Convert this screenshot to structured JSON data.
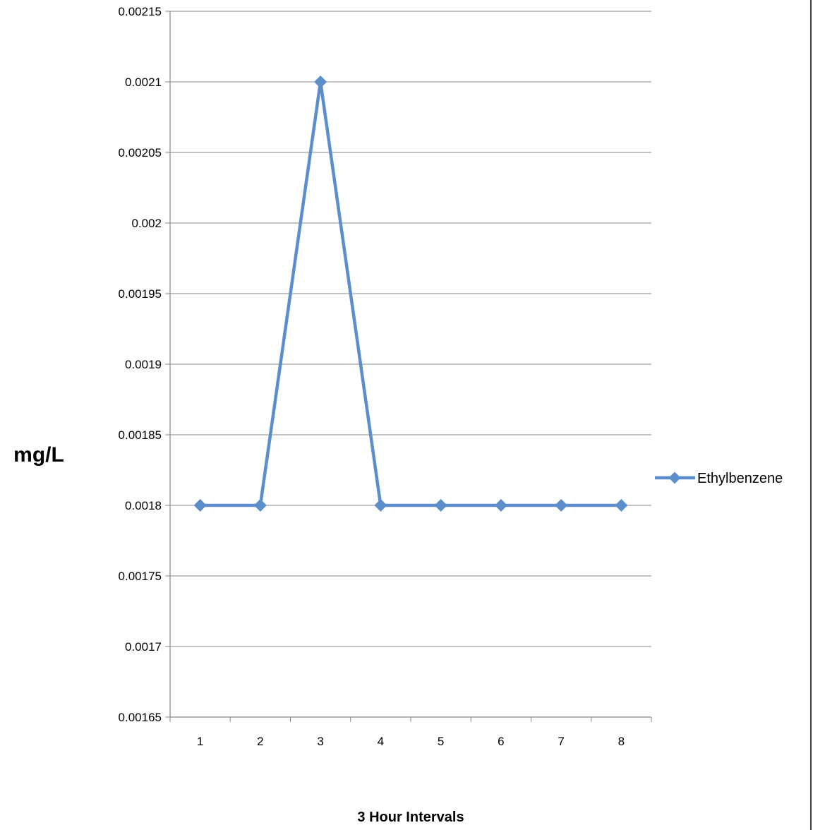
{
  "chart_data": {
    "type": "line",
    "categories": [
      "1",
      "2",
      "3",
      "4",
      "5",
      "6",
      "7",
      "8"
    ],
    "series": [
      {
        "name": "Ethylbenzene",
        "values": [
          0.0018,
          0.0018,
          0.0021,
          0.0018,
          0.0018,
          0.0018,
          0.0018,
          0.0018
        ]
      }
    ],
    "xlabel": "3 Hour Intervals",
    "ylabel": "mg/L",
    "ylim": [
      0.00165,
      0.00215
    ],
    "yticks": [
      "0.00165",
      "0.0017",
      "0.00175",
      "0.0018",
      "0.00185",
      "0.0019",
      "0.00195",
      "0.002",
      "0.00205",
      "0.0021",
      "0.00215"
    ],
    "grid": true,
    "legend_position": "right",
    "colors": {
      "series": "#5B8ECB",
      "grid": "#888888",
      "axis": "#888888"
    }
  }
}
